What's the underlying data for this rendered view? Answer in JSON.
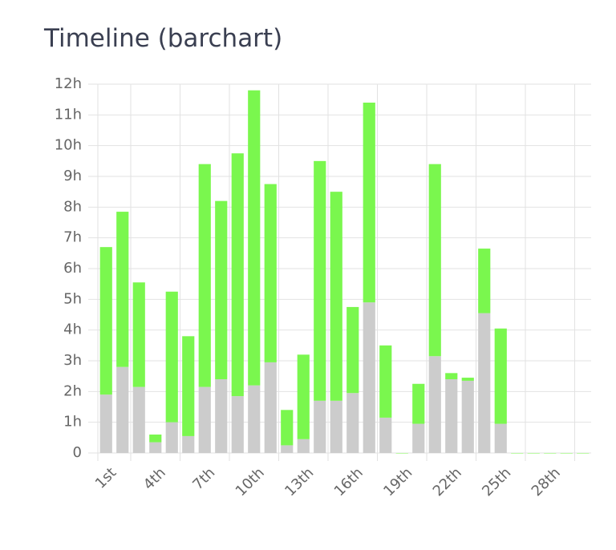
{
  "chart_data": {
    "type": "bar",
    "stacked": true,
    "title": "Timeline (barchart)",
    "categories": [
      "1st",
      null,
      null,
      "4th",
      null,
      null,
      "7th",
      null,
      null,
      "10th",
      null,
      null,
      "13th",
      null,
      null,
      "16th",
      null,
      null,
      "19th",
      null,
      null,
      "22th",
      null,
      null,
      "25th",
      null,
      null,
      "28th",
      null,
      null
    ],
    "series": [
      {
        "color": "#cccccc",
        "values": [
          1.9,
          2.8,
          2.15,
          0.35,
          1.0,
          0.55,
          2.15,
          2.4,
          1.85,
          2.2,
          2.95,
          0.25,
          0.45,
          1.7,
          1.7,
          1.95,
          4.9,
          1.15,
          0,
          0.95,
          3.15,
          2.4,
          2.35,
          4.55,
          0.95,
          0,
          0,
          0,
          0,
          0
        ]
      },
      {
        "color": "#7af74e",
        "values": [
          4.8,
          5.05,
          3.4,
          0.25,
          4.25,
          3.25,
          7.25,
          5.8,
          7.9,
          9.6,
          5.8,
          1.15,
          2.75,
          7.8,
          6.8,
          2.8,
          6.5,
          2.35,
          0,
          1.3,
          6.25,
          0.2,
          0.1,
          2.1,
          3.1,
          0,
          0,
          0,
          0,
          0
        ]
      }
    ],
    "ylim": [
      0,
      12
    ],
    "yticks": [
      0,
      {
        "value": 1,
        "label": "1h"
      },
      {
        "value": 2,
        "label": "2h"
      },
      {
        "value": 3,
        "label": "3h"
      },
      {
        "value": 4,
        "label": "4h"
      },
      {
        "value": 5,
        "label": "5h"
      },
      {
        "value": 6,
        "label": "6h"
      },
      {
        "value": 7,
        "label": "7h"
      },
      {
        "value": 8,
        "label": "8h"
      },
      {
        "value": 9,
        "label": "9h"
      },
      {
        "value": 10,
        "label": "10h"
      },
      {
        "value": 11,
        "label": "11h"
      },
      {
        "value": 12,
        "label": "12h"
      }
    ],
    "grid": true
  }
}
